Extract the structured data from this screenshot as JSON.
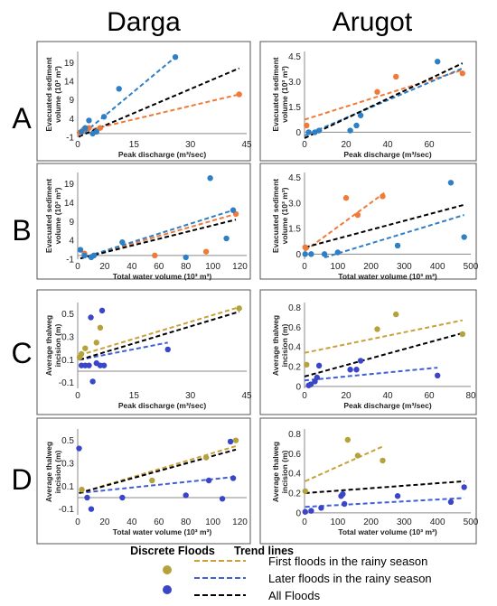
{
  "columns": [
    "Darga",
    "Arugot"
  ],
  "rows": [
    "A",
    "B",
    "C",
    "D"
  ],
  "colors": {
    "first_point": "#f07a3a",
    "later_point": "#2f7fc4",
    "first_point_cd": "#b5a23c",
    "later_point_cd": "#3a45c8",
    "first_line_ab": "#f07a3a",
    "later_line_ab": "#2f7fc4",
    "first_line_cd": "#c9a13a",
    "later_line_cd": "#3f5fd6",
    "all_line": "#000000"
  },
  "legend": {
    "discrete_title": "Discrete Floods",
    "trend_title": "Trend lines",
    "first": "First floods in the rainy season",
    "later": "Later floods in the rainy season",
    "all": "All Floods"
  },
  "chart_data": [
    {
      "id": "A-Darga",
      "type": "scatter",
      "xlabel": "Peak discharge (m³/sec)",
      "ylabel": [
        "Evacuated sediment",
        "volume (10³ m³)"
      ],
      "xlim": [
        0,
        45
      ],
      "ylim": [
        -1,
        22
      ],
      "xticks": [
        "0",
        "15",
        "30",
        "45"
      ],
      "xtickvals": [
        0,
        15,
        30,
        45
      ],
      "yticks": [
        "-1",
        "4",
        "9",
        "14",
        "19"
      ],
      "ytickvals": [
        -1,
        4,
        9,
        14,
        19
      ],
      "series": [
        {
          "key": "first",
          "x": [
            0.5,
            1.5,
            3,
            6,
            43
          ],
          "y": [
            0.2,
            1,
            1.5,
            1.5,
            10.5
          ]
        },
        {
          "key": "later",
          "x": [
            1,
            2,
            3,
            4,
            5,
            7,
            11,
            26
          ],
          "y": [
            0.5,
            1.5,
            3.5,
            0,
            0.5,
            4.5,
            12,
            20.5
          ]
        }
      ],
      "trends": [
        {
          "key": "first",
          "x": [
            0.3,
            43
          ],
          "y": [
            0.3,
            10.5
          ]
        },
        {
          "key": "later",
          "x": [
            0.3,
            26
          ],
          "y": [
            -1,
            20.5
          ]
        },
        {
          "key": "all",
          "x": [
            0.3,
            43
          ],
          "y": [
            -0.8,
            17.5
          ]
        }
      ]
    },
    {
      "id": "A-Arugot",
      "type": "scatter",
      "xlabel": "Peak discharge (m³/sec)",
      "ylabel": [
        "Evacuated sediment",
        "volume (10³ m³)"
      ],
      "xlim": [
        0,
        80
      ],
      "ylim": [
        -0.3,
        4.8
      ],
      "xticks": [
        "0",
        "20",
        "40",
        "60"
      ],
      "xtickvals": [
        0,
        20,
        40,
        60
      ],
      "yticks": [
        "0",
        "1.5",
        "3.0",
        "4.5"
      ],
      "ytickvals": [
        0,
        1.5,
        3,
        4.5
      ],
      "series": [
        {
          "key": "first",
          "x": [
            1,
            35,
            44,
            76
          ],
          "y": [
            0.4,
            2.4,
            3.3,
            3.5
          ]
        },
        {
          "key": "later",
          "x": [
            2,
            5,
            7,
            22,
            25,
            27,
            64
          ],
          "y": [
            0,
            0,
            0.1,
            0.1,
            0.4,
            1,
            4.2
          ]
        }
      ],
      "trends": [
        {
          "key": "first",
          "x": [
            0,
            76
          ],
          "y": [
            0.75,
            3.7
          ]
        },
        {
          "key": "later",
          "x": [
            0,
            76
          ],
          "y": [
            -0.2,
            3.8
          ]
        },
        {
          "key": "all",
          "x": [
            0,
            76
          ],
          "y": [
            -0.35,
            4.1
          ]
        }
      ]
    },
    {
      "id": "B-Darga",
      "type": "scatter",
      "xlabel": "Total water volume (10³ m³)",
      "ylabel": [
        "Evacuated sediment",
        "volume (10³ m³)"
      ],
      "xlim": [
        0,
        125
      ],
      "ylim": [
        -1,
        22
      ],
      "xticks": [
        "0",
        "20",
        "40",
        "60",
        "80",
        "100",
        "120"
      ],
      "xtickvals": [
        0,
        20,
        40,
        60,
        80,
        100,
        120
      ],
      "yticks": [
        "-1",
        "4",
        "9",
        "14",
        "19"
      ],
      "ytickvals": [
        -1,
        4,
        9,
        14,
        19
      ],
      "series": [
        {
          "key": "first",
          "x": [
            5,
            57,
            95,
            117
          ],
          "y": [
            0.5,
            0,
            1,
            11
          ]
        },
        {
          "key": "later",
          "x": [
            2,
            5,
            10,
            12,
            33,
            80,
            98,
            110,
            115
          ],
          "y": [
            1.5,
            0,
            -0.5,
            0,
            3.5,
            -0.5,
            20.5,
            4.5,
            12
          ]
        }
      ],
      "trends": [
        {
          "key": "first",
          "x": [
            2,
            117
          ],
          "y": [
            -0.8,
            11
          ]
        },
        {
          "key": "later",
          "x": [
            2,
            115
          ],
          "y": [
            -0.8,
            12
          ]
        },
        {
          "key": "all",
          "x": [
            2,
            117
          ],
          "y": [
            -0.8,
            9.5
          ]
        }
      ]
    },
    {
      "id": "B-Arugot",
      "type": "scatter",
      "xlabel": "Total water volume (10³ m³)",
      "ylabel": [
        "Evacuated sediment",
        "volume (10³ m³)"
      ],
      "xlim": [
        0,
        500
      ],
      "ylim": [
        -0.3,
        4.8
      ],
      "xticks": [
        "0",
        "100",
        "200",
        "300",
        "400",
        "500"
      ],
      "xtickvals": [
        0,
        100,
        200,
        300,
        400,
        500
      ],
      "yticks": [
        "0",
        "1.5",
        "3.0",
        "4.5"
      ],
      "ytickvals": [
        0,
        1.5,
        3,
        4.5
      ],
      "series": [
        {
          "key": "first",
          "x": [
            2,
            125,
            160,
            235
          ],
          "y": [
            0.4,
            3.3,
            2.3,
            3.4
          ]
        },
        {
          "key": "later",
          "x": [
            2,
            20,
            60,
            100,
            280,
            440,
            480
          ],
          "y": [
            0,
            0,
            0,
            0.1,
            0.5,
            4.2,
            1
          ]
        }
      ],
      "trends": [
        {
          "key": "first",
          "x": [
            2,
            240
          ],
          "y": [
            0.2,
            3.6
          ]
        },
        {
          "key": "later",
          "x": [
            60,
            480
          ],
          "y": [
            -0.2,
            2.3
          ]
        },
        {
          "key": "all",
          "x": [
            2,
            480
          ],
          "y": [
            0.4,
            2.9
          ]
        }
      ]
    },
    {
      "id": "C-Darga",
      "type": "scatter",
      "xlabel": "Peak discharge (m³/sec)",
      "ylabel": [
        "Average thalweg",
        "incision (m)"
      ],
      "xlim": [
        0,
        45
      ],
      "ylim": [
        -0.15,
        0.6
      ],
      "xticks": [
        "0",
        "15",
        "30",
        "45"
      ],
      "xtickvals": [
        0,
        15,
        30,
        45
      ],
      "yticks": [
        "-0.1",
        "0.1",
        "0.3",
        "0.5"
      ],
      "ytickvals": [
        -0.1,
        0.1,
        0.3,
        0.5
      ],
      "series": [
        {
          "key": "first",
          "x": [
            0.5,
            1,
            2,
            5,
            6,
            43
          ],
          "y": [
            0.12,
            0.15,
            0.2,
            0.25,
            0.38,
            0.55
          ]
        },
        {
          "key": "later",
          "x": [
            1,
            2,
            3,
            3.5,
            4,
            5,
            6,
            6.5,
            7,
            24
          ],
          "y": [
            0.05,
            0.05,
            0.05,
            0.47,
            -0.09,
            0.07,
            0.05,
            0.53,
            0.05,
            0.19
          ]
        }
      ],
      "trends": [
        {
          "key": "first",
          "x": [
            0.5,
            43
          ],
          "y": [
            0.14,
            0.56
          ]
        },
        {
          "key": "later",
          "x": [
            0.5,
            24
          ],
          "y": [
            0.1,
            0.25
          ]
        },
        {
          "key": "all",
          "x": [
            0.5,
            43
          ],
          "y": [
            0.1,
            0.52
          ]
        }
      ]
    },
    {
      "id": "C-Arugot",
      "type": "scatter",
      "xlabel": "Peak discharge (m³/sec)",
      "ylabel": [
        "Average thalweg",
        "incision (m)"
      ],
      "xlim": [
        0,
        80
      ],
      "ylim": [
        -0.02,
        0.85
      ],
      "xticks": [
        "0",
        "20",
        "40",
        "60",
        "80"
      ],
      "xtickvals": [
        0,
        20,
        40,
        60,
        80
      ],
      "yticks": [
        "0",
        "0.2",
        "0.4",
        "0.6",
        "0.8"
      ],
      "ytickvals": [
        0,
        0.2,
        0.4,
        0.6,
        0.8
      ],
      "series": [
        {
          "key": "first",
          "x": [
            1,
            35,
            44,
            76
          ],
          "y": [
            0.22,
            0.58,
            0.73,
            0.53
          ]
        },
        {
          "key": "later",
          "x": [
            2,
            3,
            5,
            6,
            7,
            22,
            25,
            27,
            64
          ],
          "y": [
            0.01,
            0.02,
            0.05,
            0.09,
            0.21,
            0.17,
            0.17,
            0.26,
            0.11
          ]
        }
      ],
      "trends": [
        {
          "key": "first",
          "x": [
            0,
            76
          ],
          "y": [
            0.34,
            0.67
          ]
        },
        {
          "key": "later",
          "x": [
            0,
            64
          ],
          "y": [
            0.06,
            0.19
          ]
        },
        {
          "key": "all",
          "x": [
            0,
            76
          ],
          "y": [
            0.1,
            0.54
          ]
        }
      ]
    },
    {
      "id": "D-Darga",
      "type": "scatter",
      "xlabel": "Total water volume (10³ m³)",
      "ylabel": [
        "Average thalweg",
        "incision (m)"
      ],
      "xlim": [
        0,
        125
      ],
      "ylim": [
        -0.15,
        0.6
      ],
      "xticks": [
        "0",
        "20",
        "40",
        "60",
        "80",
        "100",
        "120"
      ],
      "xtickvals": [
        0,
        20,
        40,
        60,
        80,
        100,
        120
      ],
      "yticks": [
        "-0.1",
        "0.1",
        "0.3",
        "0.5"
      ],
      "ytickvals": [
        -0.1,
        0.1,
        0.3,
        0.5
      ],
      "series": [
        {
          "key": "first",
          "x": [
            3,
            55,
            95,
            117
          ],
          "y": [
            0.07,
            0.15,
            0.35,
            0.5
          ]
        },
        {
          "key": "later",
          "x": [
            1,
            7,
            10,
            33,
            80,
            97,
            107,
            113,
            115
          ],
          "y": [
            0.43,
            0,
            -0.1,
            0,
            0.02,
            0.15,
            -0.01,
            0.49,
            0.17
          ]
        }
      ],
      "trends": [
        {
          "key": "first",
          "x": [
            1,
            117
          ],
          "y": [
            0.04,
            0.45
          ]
        },
        {
          "key": "later",
          "x": [
            1,
            115
          ],
          "y": [
            0.04,
            0.18
          ]
        },
        {
          "key": "all",
          "x": [
            1,
            117
          ],
          "y": [
            0.04,
            0.42
          ]
        }
      ]
    },
    {
      "id": "D-Arugot",
      "type": "scatter",
      "xlabel": "Total water volume (10³ m³)",
      "ylabel": [
        "Average thalweg",
        "incision (m)"
      ],
      "xlim": [
        0,
        500
      ],
      "ylim": [
        -0.02,
        0.85
      ],
      "xticks": [
        "0",
        "100",
        "200",
        "300",
        "400",
        "500"
      ],
      "xtickvals": [
        0,
        100,
        200,
        300,
        400,
        500
      ],
      "yticks": [
        "0",
        "0.2",
        "0.4",
        "0.6",
        "0.8"
      ],
      "ytickvals": [
        0,
        0.2,
        0.4,
        0.6,
        0.8
      ],
      "series": [
        {
          "key": "first",
          "x": [
            2,
            130,
            160,
            235
          ],
          "y": [
            0.22,
            0.74,
            0.58,
            0.53
          ]
        },
        {
          "key": "later",
          "x": [
            2,
            20,
            50,
            110,
            115,
            120,
            280,
            440,
            480
          ],
          "y": [
            0.01,
            0.02,
            0.05,
            0.17,
            0.19,
            0.09,
            0.17,
            0.11,
            0.26
          ]
        }
      ],
      "trends": [
        {
          "key": "first",
          "x": [
            2,
            240
          ],
          "y": [
            0.32,
            0.68
          ]
        },
        {
          "key": "later",
          "x": [
            2,
            480
          ],
          "y": [
            0.06,
            0.15
          ]
        },
        {
          "key": "all",
          "x": [
            2,
            480
          ],
          "y": [
            0.2,
            0.32
          ]
        }
      ]
    }
  ]
}
